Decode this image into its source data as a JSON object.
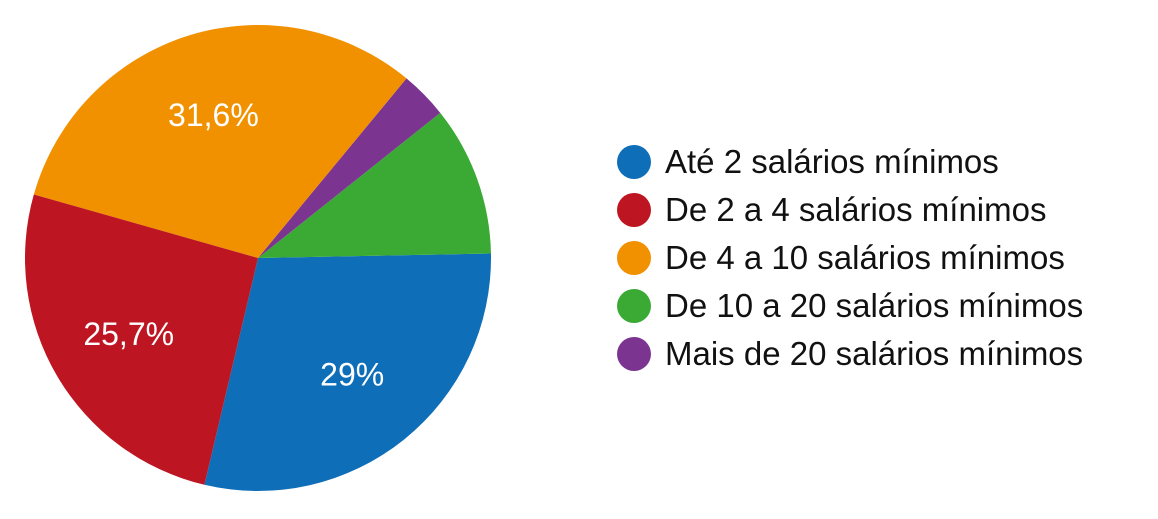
{
  "chart_data": {
    "type": "pie",
    "legend_position": "right",
    "start": "bottom-left",
    "direction": "counter-clockwise",
    "slices": [
      {
        "label": "Até 2 salários mínimos",
        "value": 29.0,
        "data_label": "29%",
        "color": "#0f6eb8"
      },
      {
        "label": "De 10 a 20 salários mínimos",
        "value": 10.4,
        "data_label": "",
        "color": "#3aaa35"
      },
      {
        "label": "Mais de 20 salários mínimos",
        "value": 3.3,
        "data_label": "",
        "color": "#7b3590"
      },
      {
        "label": "De 4 a 10 salários mínimos",
        "value": 31.6,
        "data_label": "31,6%",
        "color": "#f29100"
      },
      {
        "label": "De 2 a 4 salários mínimos",
        "value": 25.7,
        "data_label": "25,7%",
        "color": "#bd1622"
      }
    ],
    "legend": [
      {
        "label": "Até 2 salários mínimos",
        "color": "#0f6eb8"
      },
      {
        "label": "De 2 a 4 salários mínimos",
        "color": "#bd1622"
      },
      {
        "label": "De 4 a 10 salários mínimos",
        "color": "#f29100"
      },
      {
        "label": "De 10 a 20 salários mínimos",
        "color": "#3aaa35"
      },
      {
        "label": "Mais de 20 salários mínimos",
        "color": "#7b3590"
      }
    ]
  }
}
